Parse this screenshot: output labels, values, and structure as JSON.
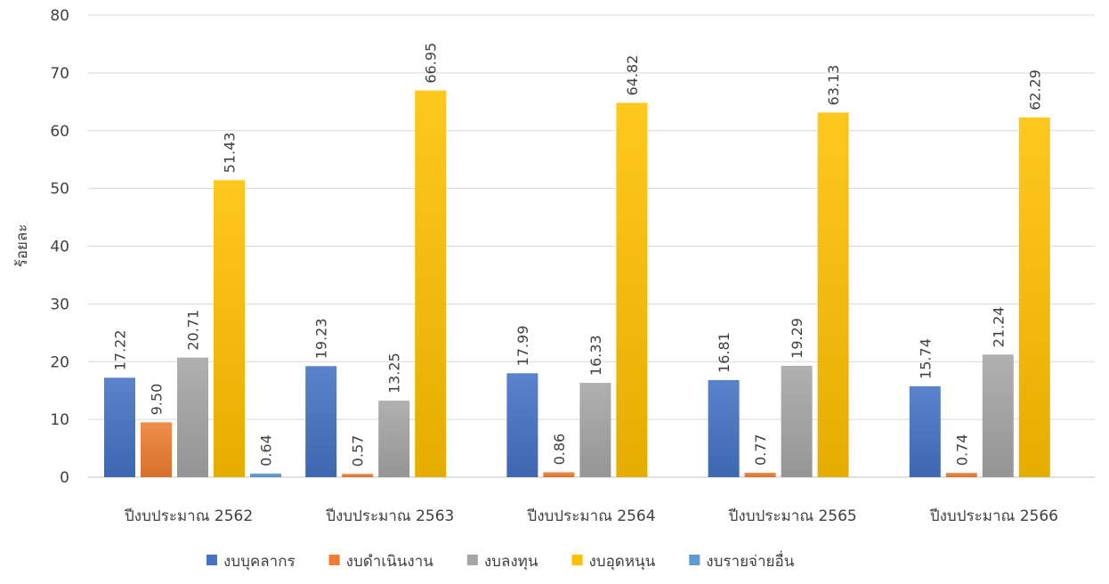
{
  "chart_data": {
    "type": "bar",
    "title": "",
    "xlabel": "",
    "ylabel": "ร้อยละ",
    "ylim": [
      0,
      80
    ],
    "yticks": [
      0,
      10,
      20,
      30,
      40,
      50,
      60,
      70,
      80
    ],
    "grid": true,
    "legend_position": "bottom",
    "categories": [
      "ปีงบประมาณ 2562",
      "ปีงบประมาณ 2563",
      "ปีงบประมาณ 2564",
      "ปีงบประมาณ 2565",
      "ปีงบประมาณ 2566"
    ],
    "series": [
      {
        "name": "งบบุคลากร",
        "color": "#4472c4",
        "values": [
          17.22,
          19.23,
          17.99,
          16.81,
          15.74
        ],
        "labels": [
          "17.22",
          "19.23",
          "17.99",
          "16.81",
          "15.74"
        ]
      },
      {
        "name": "งบดำเนินงาน",
        "color": "#ed7d31",
        "values": [
          9.5,
          0.57,
          0.86,
          0.77,
          0.74
        ],
        "labels": [
          "9.50",
          "0.57",
          "0.86",
          "0.77",
          "0.74"
        ]
      },
      {
        "name": "งบลงทุน",
        "color": "#a5a5a5",
        "values": [
          20.71,
          13.25,
          16.33,
          19.29,
          21.24
        ],
        "labels": [
          "20.71",
          "13.25",
          "16.33",
          "19.29",
          "21.24"
        ]
      },
      {
        "name": "งบอุดหนุน",
        "color": "#ffc000",
        "values": [
          51.43,
          66.95,
          64.82,
          63.13,
          62.29
        ],
        "labels": [
          "51.43",
          "66.95",
          "64.82",
          "63.13",
          "62.29"
        ]
      },
      {
        "name": "งบรายจ่ายอื่น",
        "color": "#5b9bd5",
        "values": [
          0.64,
          null,
          null,
          null,
          null
        ],
        "labels": [
          "0.64",
          null,
          null,
          null,
          null
        ]
      }
    ]
  }
}
